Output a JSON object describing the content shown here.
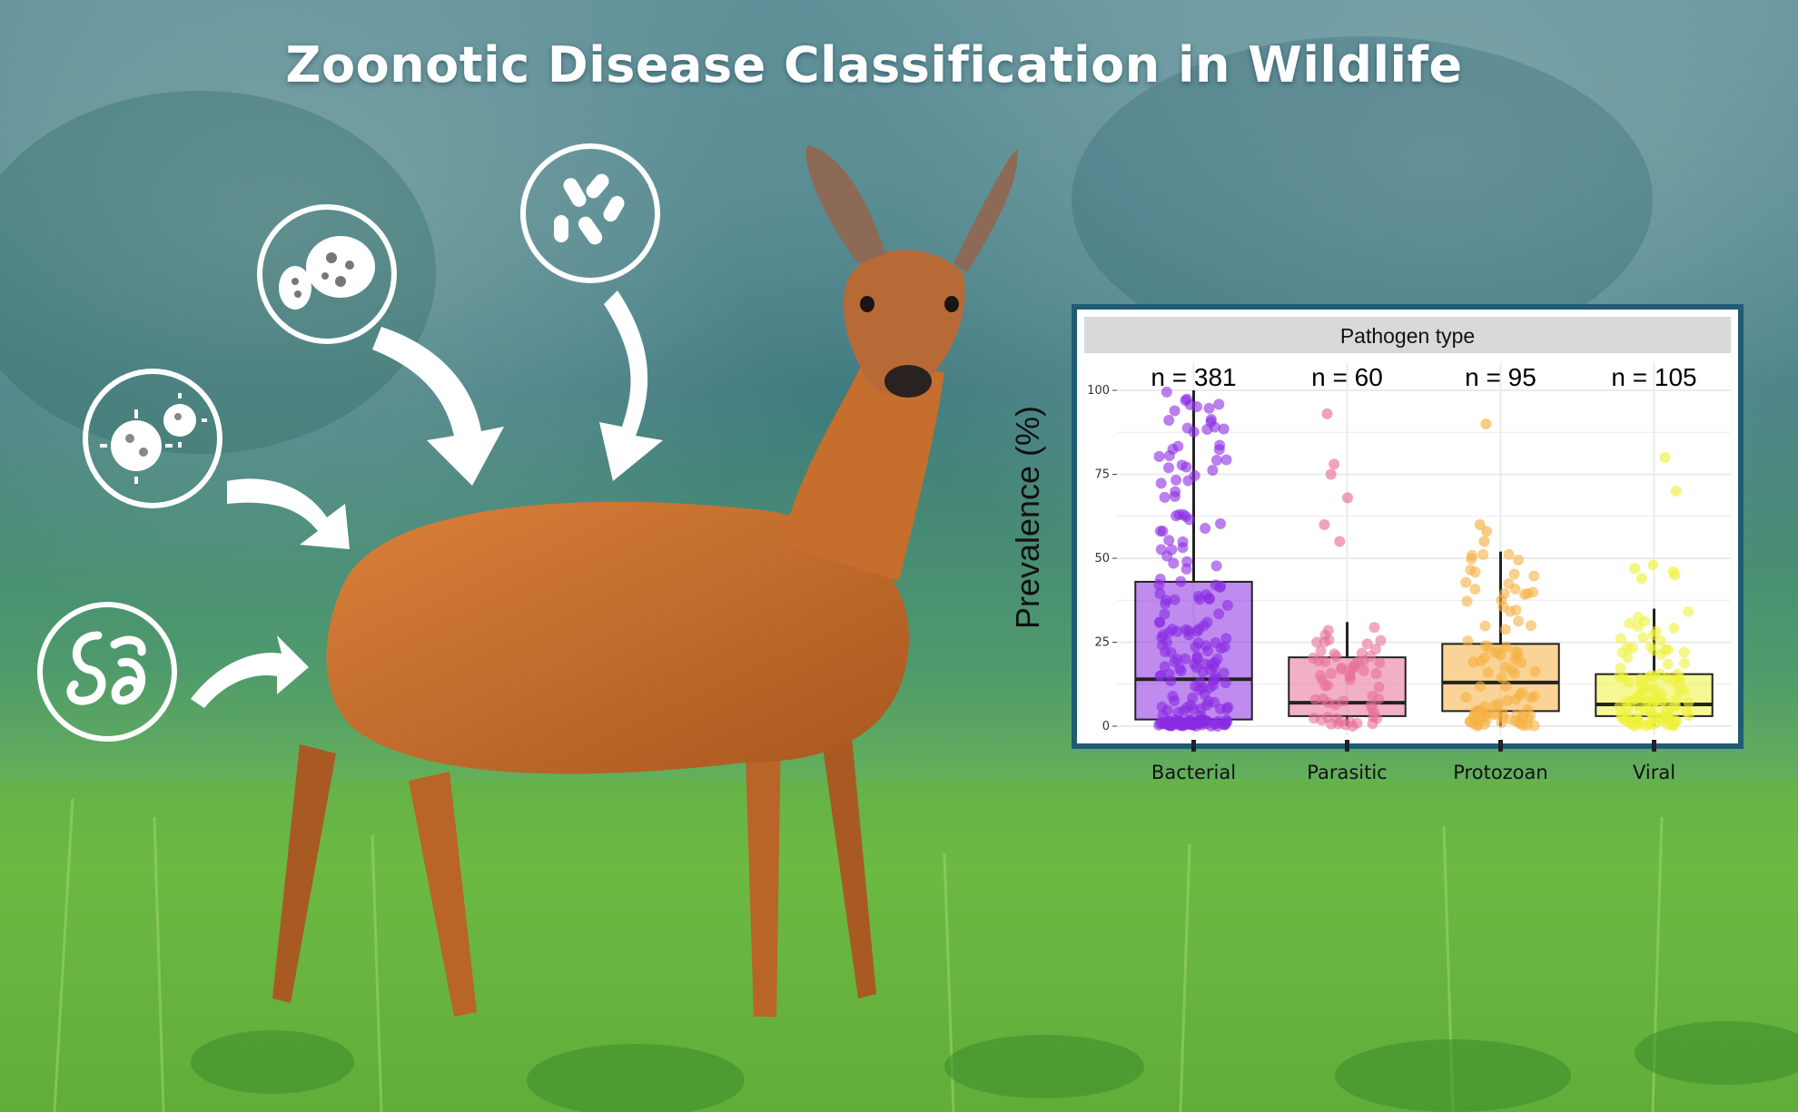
{
  "header": {
    "title": "Zoonotic Disease Classification in Wildlife"
  },
  "illustration": {
    "subject": "roe-deer",
    "pathogen_icons": [
      "protozoa-icon",
      "bacteria-icon",
      "virus-icon",
      "parasite-worm-icon"
    ],
    "colors": {
      "sky": "#3f7d86",
      "grass": "#6bbf3a",
      "deer": "#c4702e"
    }
  },
  "chart_data": {
    "type": "box",
    "panel_title": "Pathogen type",
    "ylabel": "Prevalence (%)",
    "xlabel": "",
    "ylim": [
      0,
      100
    ],
    "yticks": [
      0,
      25,
      50,
      75,
      100
    ],
    "grid": true,
    "legend": "none",
    "categories": [
      "Bacterial",
      "Parasitic",
      "Protozoan",
      "Viral"
    ],
    "counts": [
      "n = 381",
      "n = 60",
      "n = 95",
      "n = 105"
    ],
    "colors": [
      "#8a2be2",
      "#e8709a",
      "#f5b042",
      "#eef23a"
    ],
    "boxes": [
      {
        "q1": 2,
        "median": 14,
        "q3": 43,
        "whisker_low": 0,
        "whisker_high": 100
      },
      {
        "q1": 3,
        "median": 7,
        "q3": 20.5,
        "whisker_low": 0,
        "whisker_high": 31
      },
      {
        "q1": 4.5,
        "median": 13,
        "q3": 24.5,
        "whisker_low": 0,
        "whisker_high": 52
      },
      {
        "q1": 3,
        "median": 6.5,
        "q3": 15.5,
        "whisker_low": 0,
        "whisker_high": 35
      }
    ],
    "outliers": [
      [],
      [
        93,
        78,
        75,
        68,
        60,
        55
      ],
      [
        90,
        60,
        58,
        55
      ],
      [
        80,
        70,
        48,
        47,
        46,
        45,
        44
      ]
    ]
  }
}
